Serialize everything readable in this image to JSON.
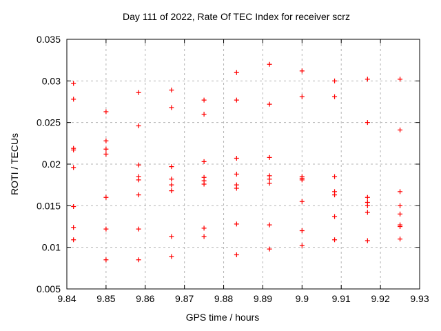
{
  "chart_data": {
    "type": "scatter",
    "title": "Day 111 of 2022, Rate Of TEC Index for receiver scrz",
    "xlabel": "GPS time / hours",
    "ylabel": "ROTI / TECUs",
    "xlim": [
      9.84,
      9.93
    ],
    "ylim": [
      0.005,
      0.035
    ],
    "xticks": {
      "values": [
        9.84,
        9.85,
        9.86,
        9.87,
        9.88,
        9.89,
        9.9,
        9.91,
        9.92,
        9.93
      ],
      "labels": [
        "9.84",
        "9.85",
        "9.86",
        "9.87",
        "9.88",
        "9.89",
        "9.9",
        "9.91",
        "9.92",
        "9.93"
      ]
    },
    "yticks": {
      "values": [
        0.005,
        0.01,
        0.015,
        0.02,
        0.025,
        0.03,
        0.035
      ],
      "labels": [
        "0.005",
        "0.01",
        "0.015",
        "0.02",
        "0.025",
        "0.03",
        "0.035"
      ]
    },
    "grid": true,
    "grid_style": "dashed",
    "grid_color": "#b3b3b3",
    "axis_color": "#000000",
    "legend": "none",
    "marker": {
      "shape": "plus",
      "color": "#ff0000",
      "size": 7
    },
    "series": [
      {
        "name": "ROTI",
        "points": [
          [
            9.8417,
            0.0297
          ],
          [
            9.8417,
            0.0278
          ],
          [
            9.8417,
            0.0219
          ],
          [
            9.8417,
            0.0217
          ],
          [
            9.8417,
            0.0196
          ],
          [
            9.8417,
            0.0149
          ],
          [
            9.8417,
            0.0124
          ],
          [
            9.8417,
            0.0109
          ],
          [
            9.85,
            0.0263
          ],
          [
            9.85,
            0.0228
          ],
          [
            9.85,
            0.0218
          ],
          [
            9.85,
            0.0212
          ],
          [
            9.85,
            0.016
          ],
          [
            9.85,
            0.0122
          ],
          [
            9.85,
            0.0085
          ],
          [
            9.8583,
            0.0286
          ],
          [
            9.8583,
            0.0246
          ],
          [
            9.8583,
            0.0199
          ],
          [
            9.8583,
            0.0185
          ],
          [
            9.8583,
            0.0181
          ],
          [
            9.8583,
            0.0163
          ],
          [
            9.8583,
            0.0122
          ],
          [
            9.8583,
            0.0085
          ],
          [
            9.8667,
            0.0289
          ],
          [
            9.8667,
            0.0268
          ],
          [
            9.8667,
            0.0197
          ],
          [
            9.8667,
            0.0182
          ],
          [
            9.8667,
            0.0175
          ],
          [
            9.8667,
            0.0168
          ],
          [
            9.8667,
            0.0113
          ],
          [
            9.8667,
            0.0089
          ],
          [
            9.875,
            0.0277
          ],
          [
            9.875,
            0.026
          ],
          [
            9.875,
            0.0203
          ],
          [
            9.875,
            0.0184
          ],
          [
            9.875,
            0.018
          ],
          [
            9.875,
            0.0176
          ],
          [
            9.875,
            0.0123
          ],
          [
            9.875,
            0.0113
          ],
          [
            9.8833,
            0.031
          ],
          [
            9.8833,
            0.0277
          ],
          [
            9.8833,
            0.0207
          ],
          [
            9.8833,
            0.0188
          ],
          [
            9.8833,
            0.0175
          ],
          [
            9.8833,
            0.0171
          ],
          [
            9.8833,
            0.0128
          ],
          [
            9.8833,
            0.0091
          ],
          [
            9.8917,
            0.032
          ],
          [
            9.8917,
            0.0272
          ],
          [
            9.8917,
            0.0208
          ],
          [
            9.8917,
            0.0186
          ],
          [
            9.8917,
            0.0182
          ],
          [
            9.8917,
            0.0177
          ],
          [
            9.8917,
            0.0127
          ],
          [
            9.8917,
            0.0098
          ],
          [
            9.9,
            0.0312
          ],
          [
            9.9,
            0.0281
          ],
          [
            9.9,
            0.0185
          ],
          [
            9.9,
            0.0183
          ],
          [
            9.9,
            0.0181
          ],
          [
            9.9,
            0.0155
          ],
          [
            9.9,
            0.012
          ],
          [
            9.9,
            0.0102
          ],
          [
            9.9083,
            0.03
          ],
          [
            9.9083,
            0.0281
          ],
          [
            9.9083,
            0.0185
          ],
          [
            9.9083,
            0.0167
          ],
          [
            9.9083,
            0.0163
          ],
          [
            9.9083,
            0.0137
          ],
          [
            9.9083,
            0.0109
          ],
          [
            9.9167,
            0.0302
          ],
          [
            9.9167,
            0.025
          ],
          [
            9.9167,
            0.016
          ],
          [
            9.9167,
            0.0154
          ],
          [
            9.9167,
            0.015
          ],
          [
            9.9167,
            0.0142
          ],
          [
            9.9167,
            0.0108
          ],
          [
            9.925,
            0.0302
          ],
          [
            9.925,
            0.0241
          ],
          [
            9.925,
            0.0167
          ],
          [
            9.925,
            0.015
          ],
          [
            9.925,
            0.014
          ],
          [
            9.925,
            0.0127
          ],
          [
            9.925,
            0.0125
          ],
          [
            9.925,
            0.011
          ]
        ]
      }
    ]
  }
}
